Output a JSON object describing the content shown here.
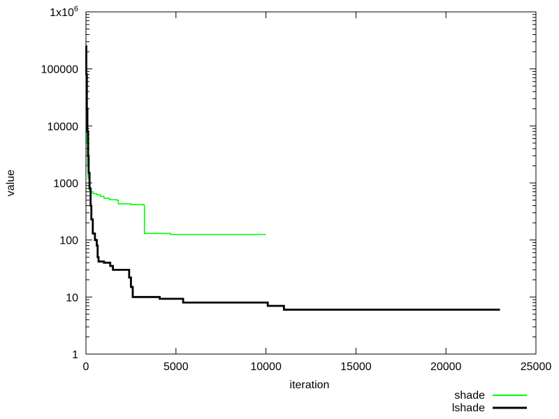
{
  "chart_data": {
    "type": "line",
    "title": "",
    "xlabel": "iteration",
    "ylabel": "value",
    "xlim": [
      0,
      25000
    ],
    "ylim": [
      1,
      1000000
    ],
    "yscale": "log",
    "grid": false,
    "legend_position": "bottom-right",
    "x_ticks": [
      {
        "value": 0,
        "label": "0"
      },
      {
        "value": 5000,
        "label": "5000"
      },
      {
        "value": 10000,
        "label": "10000"
      },
      {
        "value": 15000,
        "label": "15000"
      },
      {
        "value": 20000,
        "label": "20000"
      },
      {
        "value": 25000,
        "label": "25000"
      }
    ],
    "y_ticks": [
      {
        "value": 1,
        "label": "1"
      },
      {
        "value": 10,
        "label": "10"
      },
      {
        "value": 100,
        "label": "100"
      },
      {
        "value": 1000,
        "label": "1000"
      },
      {
        "value": 10000,
        "label": "10000"
      },
      {
        "value": 100000,
        "label": "100000"
      },
      {
        "value": 1000000,
        "label": "1x10",
        "superscript": "6"
      }
    ],
    "series": [
      {
        "name": "shade",
        "color": "#00ff00",
        "points": [
          [
            0,
            100000
          ],
          [
            30,
            30000
          ],
          [
            60,
            5000
          ],
          [
            90,
            2000
          ],
          [
            120,
            1200
          ],
          [
            200,
            700
          ],
          [
            400,
            650
          ],
          [
            600,
            620
          ],
          [
            800,
            580
          ],
          [
            1000,
            540
          ],
          [
            1300,
            510
          ],
          [
            1700,
            500
          ],
          [
            1800,
            430
          ],
          [
            2500,
            420
          ],
          [
            3200,
            410
          ],
          [
            3250,
            130
          ],
          [
            4700,
            125
          ],
          [
            10000,
            125
          ]
        ]
      },
      {
        "name": "lshade",
        "color": "#000000",
        "points": [
          [
            0,
            250000
          ],
          [
            20,
            80000
          ],
          [
            50,
            20000
          ],
          [
            80,
            8000
          ],
          [
            120,
            3000
          ],
          [
            150,
            1500
          ],
          [
            200,
            800
          ],
          [
            260,
            400
          ],
          [
            300,
            230
          ],
          [
            380,
            130
          ],
          [
            500,
            100
          ],
          [
            600,
            80
          ],
          [
            650,
            50
          ],
          [
            700,
            42
          ],
          [
            1000,
            40
          ],
          [
            1200,
            40
          ],
          [
            1350,
            35
          ],
          [
            1500,
            30
          ],
          [
            2300,
            30
          ],
          [
            2400,
            22
          ],
          [
            2500,
            15
          ],
          [
            2600,
            10
          ],
          [
            4000,
            10
          ],
          [
            4100,
            9.3
          ],
          [
            5300,
            9.3
          ],
          [
            5400,
            8
          ],
          [
            10000,
            8
          ],
          [
            10100,
            7
          ],
          [
            10900,
            7
          ],
          [
            11000,
            6
          ],
          [
            23000,
            6
          ]
        ]
      }
    ]
  }
}
